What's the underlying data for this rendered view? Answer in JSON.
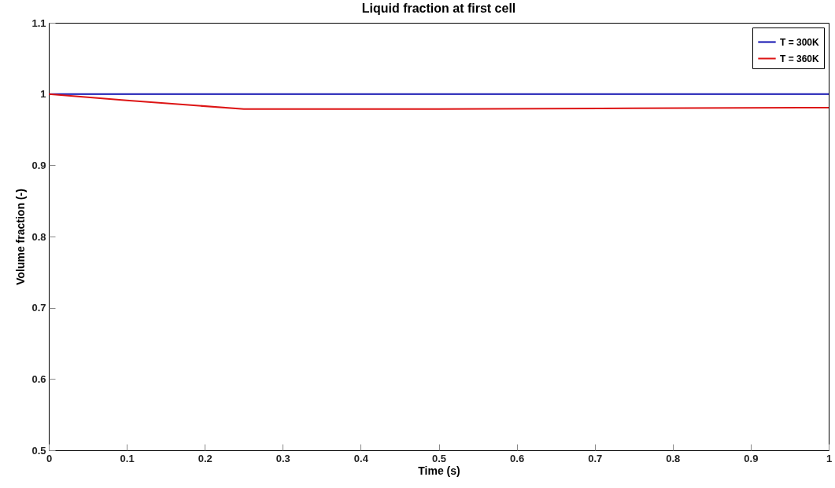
{
  "chart_data": {
    "type": "line",
    "title": "Liquid fraction at first cell",
    "xlabel": "Time (s)",
    "ylabel": "Volume fraction (-)",
    "xlim": [
      0,
      1
    ],
    "xticks": [
      0,
      0.1,
      0.2,
      0.3,
      0.4,
      0.5,
      0.6,
      0.7,
      0.8,
      0.9,
      1
    ],
    "ylim": [
      0.5,
      1.1
    ],
    "yticks": [
      0.5,
      0.6,
      0.7,
      0.8,
      0.9,
      1,
      1.1
    ],
    "grid": false,
    "legend": "top right",
    "line_style": "solid",
    "series": [
      {
        "name": "T = 300K",
        "color": "#1010b0",
        "x": [
          0,
          1
        ],
        "values": [
          1,
          1
        ]
      },
      {
        "name": "T = 360K",
        "color": "#dd1515",
        "x": [
          0,
          0.1,
          0.25,
          0.5,
          0.75,
          1
        ],
        "values": [
          1,
          0.991,
          0.979,
          0.979,
          0.98,
          0.981
        ]
      }
    ]
  }
}
